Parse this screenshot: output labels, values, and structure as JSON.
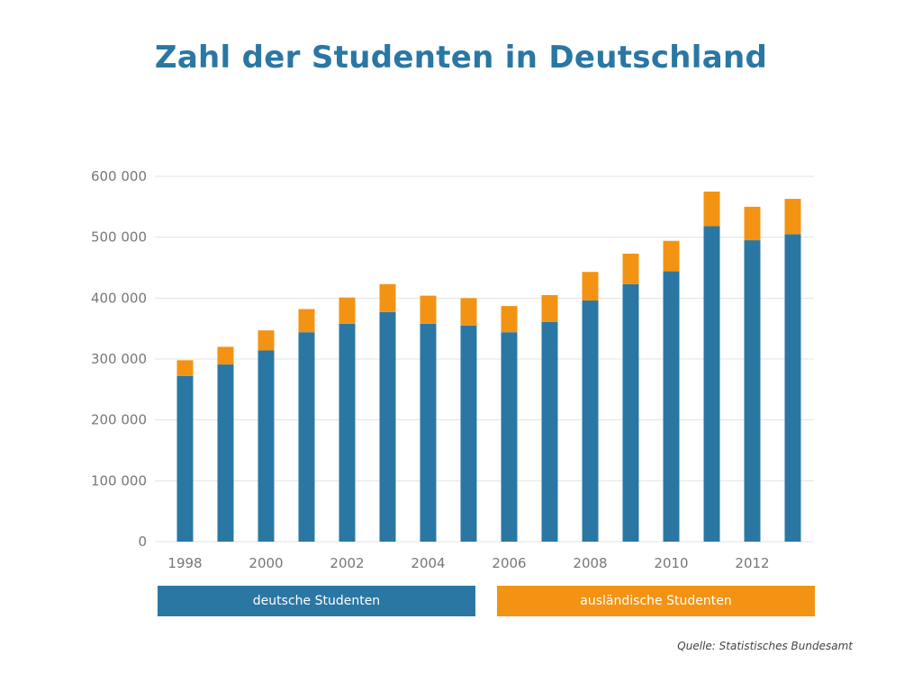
{
  "title": "Zahl der Studenten in Deutschland",
  "source": "Quelle: Statistisches Bundesamt",
  "colors": {
    "deutsch": "#2a77a4",
    "auslaendisch": "#f39313",
    "title": "#2a77a4"
  },
  "chart_data": {
    "type": "bar",
    "stacked": true,
    "title": "Zahl der Studenten in Deutschland",
    "x": [
      1998,
      1999,
      2000,
      2001,
      2002,
      2003,
      2004,
      2005,
      2006,
      2007,
      2008,
      2009,
      2010,
      2011,
      2012,
      2013
    ],
    "x_tick_labels": [
      "1998",
      "2000",
      "2002",
      "2004",
      "2006",
      "2008",
      "2010",
      "2012"
    ],
    "y_tick_labels": [
      "0",
      "100 000",
      "200 000",
      "300 000",
      "400 000",
      "500 000",
      "600 000"
    ],
    "ylim": [
      0,
      600000
    ],
    "grid": true,
    "legend_position": "bottom",
    "series": [
      {
        "name": "deutsche Studenten",
        "values": [
          272000,
          291000,
          314000,
          344000,
          358000,
          377000,
          358000,
          355000,
          344000,
          361000,
          396000,
          423000,
          444000,
          518000,
          495000,
          505000
        ]
      },
      {
        "name": "ausländische Studenten",
        "values": [
          26000,
          29000,
          33000,
          38000,
          43000,
          46000,
          46000,
          45000,
          43000,
          44000,
          47000,
          50000,
          50000,
          57000,
          55000,
          58000
        ]
      }
    ]
  }
}
